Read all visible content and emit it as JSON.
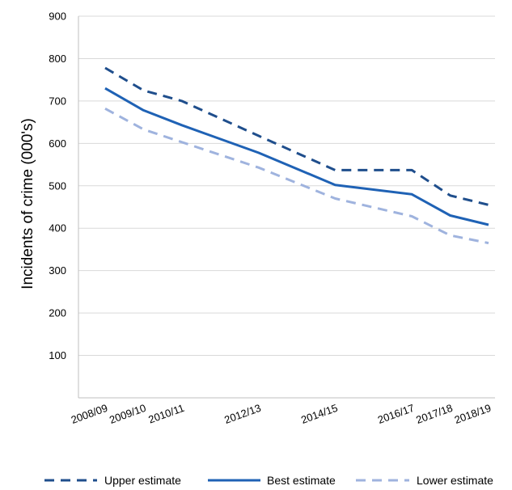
{
  "chart_data": {
    "type": "line",
    "title": "",
    "xlabel": "",
    "ylabel": "Incidents of crime (000's)",
    "ylim": [
      0,
      900
    ],
    "yticks": [
      100,
      200,
      300,
      400,
      500,
      600,
      700,
      800,
      900
    ],
    "x": [
      2008,
      2009,
      2010,
      2012,
      2014,
      2016,
      2017,
      2018
    ],
    "categories": [
      "2008/09",
      "2009/10",
      "2010/11",
      "2012/13",
      "2014/15",
      "2016/17",
      "2017/18",
      "2018/19"
    ],
    "grid": true,
    "legend_position": "bottom",
    "series": [
      {
        "name": "Upper estimate",
        "style": "dashed",
        "color": "#1f4e8c",
        "values": [
          778,
          725,
          700,
          618,
          537,
          537,
          477,
          455
        ]
      },
      {
        "name": "Best estimate",
        "style": "solid",
        "color": "#1f62b5",
        "values": [
          730,
          678,
          643,
          578,
          502,
          480,
          430,
          408
        ]
      },
      {
        "name": "Lower estimate",
        "style": "dashed",
        "color": "#9fb3de",
        "values": [
          682,
          633,
          603,
          543,
          470,
          428,
          383,
          365
        ]
      }
    ]
  }
}
